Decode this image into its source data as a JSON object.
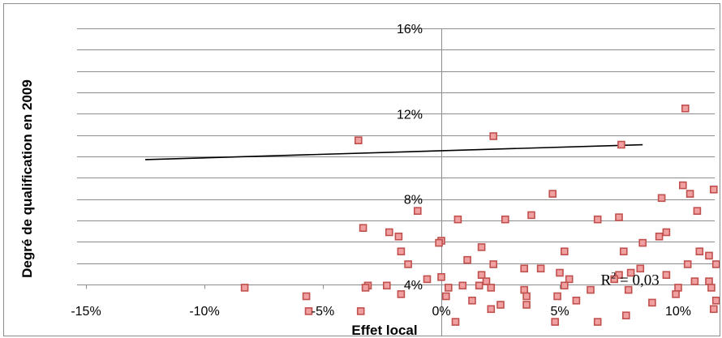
{
  "chart_data": {
    "type": "scatter",
    "xlabel": "Effet local",
    "ylabel": "Degré de qualification en 2009",
    "xlim": [
      -0.15,
      0.115
    ],
    "ylim": [
      0.03,
      0.17
    ],
    "grid": {
      "horizontal": true,
      "vertical": false
    },
    "x_ticks": [
      -0.15,
      -0.1,
      -0.05,
      0.0,
      0.05,
      0.1
    ],
    "x_tick_labels": [
      "-15%",
      "-10%",
      "-5%",
      "0%",
      "5%",
      "10%"
    ],
    "y_ticks": [
      0.04,
      0.08,
      0.12,
      0.16
    ],
    "y_tick_labels": [
      "4%",
      "8%",
      "12%",
      "16%"
    ],
    "marker_color": "#c0504d",
    "marker_fill": "#f0a0a0",
    "trendline_color": "#000000",
    "annotation": {
      "text_base": "R",
      "text_sup": "2",
      "text_rest": " = 0,03",
      "x": 0.068,
      "y": 0.0425
    },
    "trendline": {
      "x": [
        -0.125,
        0.085
      ],
      "y": [
        0.0985,
        0.1055
      ]
    },
    "points": [
      {
        "x": 0.103,
        "y": 0.1225
      },
      {
        "x": 0.022,
        "y": 0.1095
      },
      {
        "x": -0.035,
        "y": 0.1075
      },
      {
        "x": 0.076,
        "y": 0.1055
      },
      {
        "x": 0.102,
        "y": 0.0865
      },
      {
        "x": 0.105,
        "y": 0.0825
      },
      {
        "x": 0.115,
        "y": 0.0845
      },
      {
        "x": 0.047,
        "y": 0.0825
      },
      {
        "x": 0.093,
        "y": 0.0805
      },
      {
        "x": -0.01,
        "y": 0.0745
      },
      {
        "x": 0.038,
        "y": 0.0725
      },
      {
        "x": 0.007,
        "y": 0.0705
      },
      {
        "x": 0.027,
        "y": 0.0705
      },
      {
        "x": 0.066,
        "y": 0.0705
      },
      {
        "x": 0.075,
        "y": 0.0715
      },
      {
        "x": 0.108,
        "y": 0.0745
      },
      {
        "x": -0.033,
        "y": 0.0665
      },
      {
        "x": -0.022,
        "y": 0.0645
      },
      {
        "x": -0.018,
        "y": 0.0625
      },
      {
        "x": 0.095,
        "y": 0.0645
      },
      {
        "x": 0.092,
        "y": 0.0625
      },
      {
        "x": 0.0,
        "y": 0.0605
      },
      {
        "x": -0.001,
        "y": 0.0595
      },
      {
        "x": 0.085,
        "y": 0.0595
      },
      {
        "x": 0.017,
        "y": 0.0575
      },
      {
        "x": -0.017,
        "y": 0.0555
      },
      {
        "x": 0.052,
        "y": 0.0555
      },
      {
        "x": 0.077,
        "y": 0.0555
      },
      {
        "x": 0.109,
        "y": 0.0555
      },
      {
        "x": 0.113,
        "y": 0.0535
      },
      {
        "x": 0.011,
        "y": 0.0515
      },
      {
        "x": 0.022,
        "y": 0.0495
      },
      {
        "x": -0.014,
        "y": 0.0495
      },
      {
        "x": 0.104,
        "y": 0.0495
      },
      {
        "x": 0.116,
        "y": 0.0495
      },
      {
        "x": 0.035,
        "y": 0.0475
      },
      {
        "x": 0.042,
        "y": 0.0475
      },
      {
        "x": 0.05,
        "y": 0.0455
      },
      {
        "x": 0.084,
        "y": 0.0475
      },
      {
        "x": 0.017,
        "y": 0.0445
      },
      {
        "x": 0.075,
        "y": 0.0445
      },
      {
        "x": 0.08,
        "y": 0.0455
      },
      {
        "x": 0.095,
        "y": 0.0445
      },
      {
        "x": -0.006,
        "y": 0.0425
      },
      {
        "x": 0.0,
        "y": 0.0435
      },
      {
        "x": 0.019,
        "y": 0.0415
      },
      {
        "x": 0.054,
        "y": 0.0425
      },
      {
        "x": 0.073,
        "y": 0.0425
      },
      {
        "x": 0.107,
        "y": 0.0415
      },
      {
        "x": 0.113,
        "y": 0.0415
      },
      {
        "x": -0.031,
        "y": 0.0395
      },
      {
        "x": -0.023,
        "y": 0.0395
      },
      {
        "x": 0.009,
        "y": 0.0395
      },
      {
        "x": 0.016,
        "y": 0.0395
      },
      {
        "x": 0.021,
        "y": 0.0385
      },
      {
        "x": 0.052,
        "y": 0.0395
      },
      {
        "x": -0.083,
        "y": 0.0385
      },
      {
        "x": -0.032,
        "y": 0.0385
      },
      {
        "x": 0.003,
        "y": 0.0385
      },
      {
        "x": 0.035,
        "y": 0.0375
      },
      {
        "x": 0.063,
        "y": 0.0375
      },
      {
        "x": 0.079,
        "y": 0.0375
      },
      {
        "x": 0.1,
        "y": 0.0385
      },
      {
        "x": 0.114,
        "y": 0.0385
      },
      {
        "x": -0.017,
        "y": 0.0355
      },
      {
        "x": 0.002,
        "y": 0.0345
      },
      {
        "x": 0.036,
        "y": 0.0345
      },
      {
        "x": 0.049,
        "y": 0.0345
      },
      {
        "x": 0.099,
        "y": 0.0355
      },
      {
        "x": -0.057,
        "y": 0.0345
      },
      {
        "x": 0.013,
        "y": 0.0325
      },
      {
        "x": 0.057,
        "y": 0.0325
      },
      {
        "x": 0.089,
        "y": 0.0315
      },
      {
        "x": 0.116,
        "y": 0.0325
      },
      {
        "x": 0.025,
        "y": 0.0305
      },
      {
        "x": 0.036,
        "y": 0.0305
      },
      {
        "x": 0.021,
        "y": 0.0285
      },
      {
        "x": -0.056,
        "y": 0.0275
      },
      {
        "x": -0.034,
        "y": 0.0275
      },
      {
        "x": 0.078,
        "y": 0.0255
      },
      {
        "x": 0.115,
        "y": 0.0285
      },
      {
        "x": 0.006,
        "y": 0.0225
      },
      {
        "x": 0.048,
        "y": 0.0225
      },
      {
        "x": 0.066,
        "y": 0.0225
      }
    ]
  }
}
